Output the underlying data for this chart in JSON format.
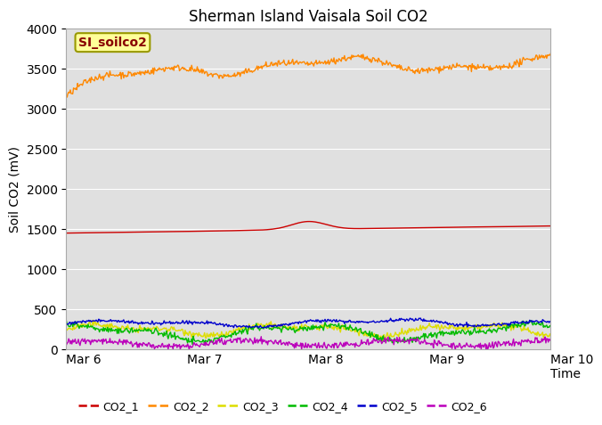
{
  "title": "Sherman Island Vaisala Soil CO2",
  "ylabel": "Soil CO2 (mV)",
  "xlabel": "Time",
  "legend_label": "SI_soilco2",
  "xlim_days": [
    0,
    4
  ],
  "ylim": [
    0,
    4000
  ],
  "yticks": [
    0,
    500,
    1000,
    1500,
    2000,
    2500,
    3000,
    3500,
    4000
  ],
  "xtick_labels": [
    "Mar 6",
    "Mar 7",
    "Mar 8",
    "Mar 9",
    "Mar 10\nTime"
  ],
  "xtick_positions": [
    0,
    1,
    2,
    3,
    4
  ],
  "series_colors": {
    "CO2_1": "#cc0000",
    "CO2_2": "#ff8800",
    "CO2_3": "#dddd00",
    "CO2_4": "#00bb00",
    "CO2_5": "#0000cc",
    "CO2_6": "#bb00bb"
  },
  "series_labels": [
    "CO2_1",
    "CO2_2",
    "CO2_3",
    "CO2_4",
    "CO2_5",
    "CO2_6"
  ],
  "background_color": "#e0e0e0",
  "title_fontsize": 12,
  "axis_fontsize": 10,
  "tick_fontsize": 10,
  "legend_box_facecolor": "#ffff99",
  "legend_box_edgecolor": "#999900",
  "legend_label_color": "#880000",
  "linewidth": 1.0
}
